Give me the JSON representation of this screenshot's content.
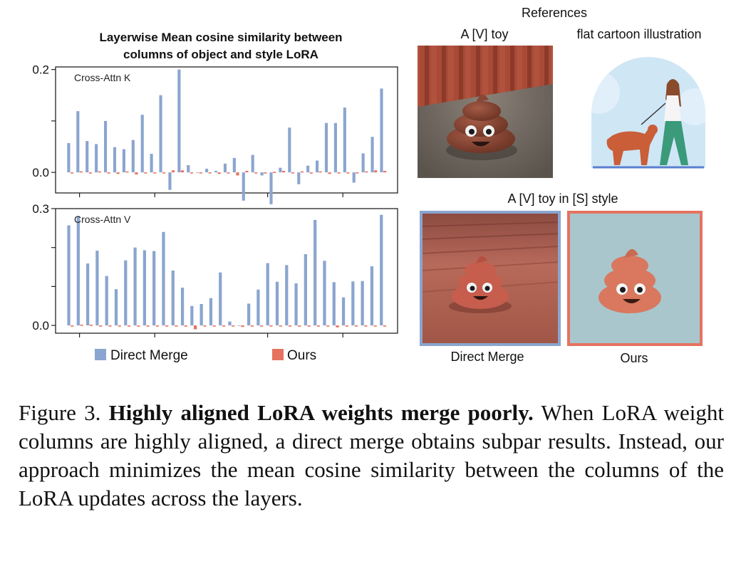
{
  "chart_title_line1": "Layerwise Mean cosine similarity between",
  "chart_title_line2": "columns of object and style LoRA",
  "chart_data": [
    {
      "type": "bar",
      "title": "Cross-Attn K",
      "ylim": [
        -0.04,
        0.205
      ],
      "yticks": [
        {
          "v": 0.2,
          "label": "0.2"
        },
        {
          "v": 0.1,
          "label": ""
        },
        {
          "v": 0.0,
          "label": "0.0"
        }
      ],
      "series": [
        {
          "name": "Direct Merge",
          "values": [
            0.057,
            0.119,
            0.061,
            0.055,
            0.1,
            0.049,
            0.045,
            0.063,
            0.112,
            0.036,
            0.15,
            -0.034,
            0.2,
            0.014,
            0.0,
            0.007,
            0.003,
            0.017,
            0.028,
            -0.055,
            0.034,
            -0.006,
            -0.062,
            0.009,
            0.087,
            -0.023,
            0.013,
            0.023,
            0.096,
            0.096,
            0.126,
            -0.02,
            0.037,
            0.069,
            0.163
          ]
        },
        {
          "name": "Ours",
          "values": [
            0.0,
            0.002,
            0.0,
            0.002,
            0.0,
            -0.003,
            0.002,
            -0.004,
            0.0,
            0.0,
            0.0,
            0.004,
            0.004,
            0.0,
            -0.002,
            0.0,
            -0.003,
            -0.002,
            -0.006,
            0.003,
            -0.002,
            0.0,
            0.001,
            0.003,
            0.0,
            0.002,
            -0.002,
            0.002,
            -0.003,
            0.0,
            -0.002,
            0.0,
            0.002,
            0.004,
            0.003
          ]
        }
      ]
    },
    {
      "type": "bar",
      "title": "Cross-Attn V",
      "ylim": [
        -0.02,
        0.3
      ],
      "yticks": [
        {
          "v": 0.3,
          "label": "0.3"
        },
        {
          "v": 0.2,
          "label": ""
        },
        {
          "v": 0.1,
          "label": ""
        },
        {
          "v": 0.0,
          "label": "0.0"
        }
      ],
      "series": [
        {
          "name": "Direct Merge",
          "values": [
            0.257,
            0.281,
            0.159,
            0.192,
            0.127,
            0.093,
            0.167,
            0.2,
            0.193,
            0.191,
            0.24,
            0.141,
            0.097,
            0.05,
            0.055,
            0.07,
            0.136,
            0.01,
            0.0,
            0.056,
            0.092,
            0.16,
            0.112,
            0.155,
            0.108,
            0.183,
            0.271,
            0.166,
            0.111,
            0.072,
            0.113,
            0.114,
            0.152,
            0.284
          ]
        },
        {
          "name": "Ours",
          "values": [
            0.0,
            0.002,
            0.002,
            -0.002,
            0.0,
            0.0,
            0.0,
            0.0,
            0.0,
            0.0,
            0.0,
            0.0,
            -0.002,
            -0.01,
            -0.002,
            0.0,
            0.0,
            -0.002,
            -0.004,
            0.0,
            0.0,
            0.0,
            0.0,
            0.0,
            0.0,
            0.0,
            0.0,
            -0.002,
            -0.005,
            0.0,
            0.0,
            0.0,
            0.0,
            0.0
          ]
        }
      ]
    }
  ],
  "legend": {
    "direct_merge": "Direct Merge",
    "ours": "Ours"
  },
  "colors": {
    "direct_merge": "#8aa5cf",
    "ours": "#e57360",
    "frame_direct": "#8aa5cf",
    "frame_ours": "#e57360"
  },
  "right_panel": {
    "references_label": "References",
    "ref_toy_label": "A [V] toy",
    "ref_style_label": "flat cartoon illustration",
    "generated_label": "A [V] toy in [S] style",
    "direct_label": "Direct Merge",
    "ours_label": "Ours"
  },
  "caption": {
    "figure_label": "Figure 3.",
    "bold_title": "Highly aligned LoRA weights merge poorly.",
    "text": "When LoRA weight columns are highly aligned, a direct merge obtains subpar results. Instead, our approach minimizes the mean cosine similarity between the columns of the LoRA updates across the layers."
  }
}
